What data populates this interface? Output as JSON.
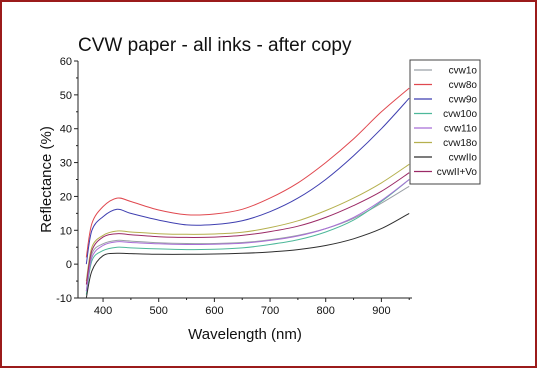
{
  "chart_data": {
    "type": "line",
    "title": "CVW paper - all inks - after copy",
    "xlabel": "Wavelength (nm)",
    "ylabel": "Reflectance (%)",
    "xlim": [
      355,
      955
    ],
    "ylim": [
      -10,
      60
    ],
    "xticks": [
      400,
      500,
      600,
      700,
      800,
      900
    ],
    "yticks": [
      -10,
      0,
      10,
      20,
      30,
      40,
      50,
      60
    ],
    "grid": false,
    "legend": "right",
    "x": [
      370,
      380,
      400,
      425,
      450,
      500,
      550,
      600,
      650,
      700,
      750,
      800,
      850,
      900,
      950
    ],
    "series": [
      {
        "name": "cvw1o",
        "color": "#9aa0a6",
        "values": [
          -8,
          3,
          6,
          7,
          6.8,
          6.3,
          6.1,
          6.1,
          6.4,
          7.2,
          8.5,
          10.5,
          13.5,
          18,
          23
        ]
      },
      {
        "name": "cvw8o",
        "color": "#e0484f",
        "values": [
          2,
          12,
          17,
          19.5,
          18.5,
          16,
          14.6,
          14.8,
          16.2,
          19.5,
          24,
          30,
          37,
          45,
          52
        ]
      },
      {
        "name": "cvw9o",
        "color": "#3f3fb0",
        "values": [
          0,
          10,
          14,
          16.2,
          15,
          13,
          11.6,
          11.7,
          12.8,
          15.5,
          19.5,
          25,
          32,
          40,
          49
        ]
      },
      {
        "name": "cvw10o",
        "color": "#4db89a",
        "values": [
          -9,
          1,
          4,
          5,
          4.8,
          4.5,
          4.3,
          4.4,
          4.8,
          5.8,
          7.2,
          9.5,
          13,
          18.5,
          25
        ]
      },
      {
        "name": "cvw11o",
        "color": "#a86ed6",
        "values": [
          -8,
          2,
          5.5,
          6.6,
          6.4,
          6,
          5.8,
          5.9,
          6.2,
          7,
          8.3,
          10.5,
          13.8,
          18.8,
          25
        ]
      },
      {
        "name": "cvw18o",
        "color": "#b5b04e",
        "values": [
          -5,
          5,
          8.5,
          9.8,
          9.5,
          9,
          8.8,
          8.9,
          9.4,
          10.8,
          12.8,
          15.8,
          19.5,
          24,
          29.5
        ]
      },
      {
        "name": "cvwIIo",
        "color": "#2e2e2e",
        "values": [
          -10,
          -2,
          2.5,
          3.2,
          3.1,
          2.9,
          2.9,
          3,
          3.2,
          3.6,
          4.3,
          5.5,
          7.5,
          10.5,
          15
        ]
      },
      {
        "name": "cvwII+Vo",
        "color": "#9b2a66",
        "values": [
          -6,
          4,
          8,
          9,
          8.7,
          8.1,
          7.9,
          8,
          8.5,
          9.6,
          11.2,
          13.8,
          17.3,
          21.5,
          27
        ]
      }
    ]
  }
}
